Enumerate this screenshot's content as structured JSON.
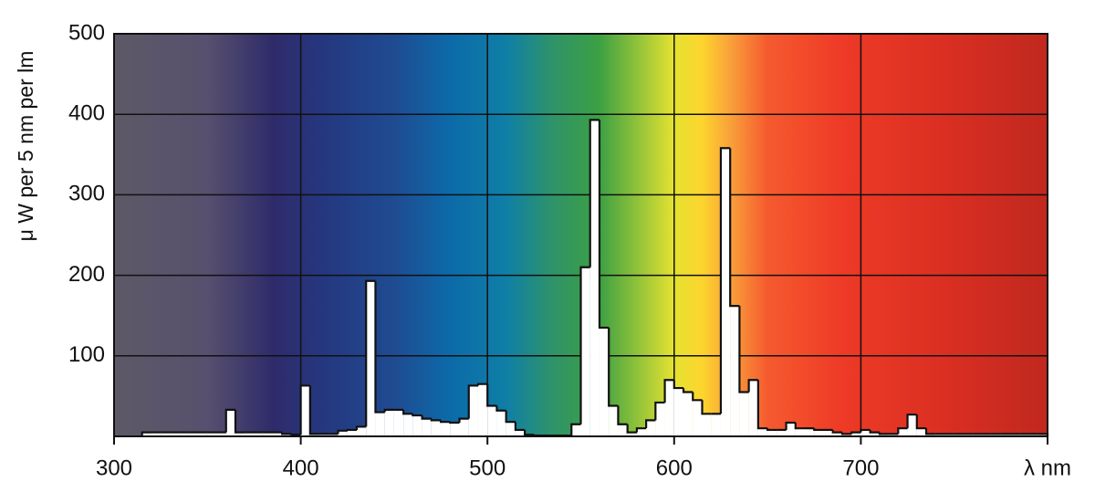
{
  "chart_data": {
    "type": "histogram",
    "y_label": "μ W per 5 nm per lm",
    "xlim": [
      300,
      800
    ],
    "ylim": [
      0,
      500
    ],
    "xticks": [
      300,
      400,
      500,
      600,
      700,
      {
        "value": 800,
        "label": "λ nm"
      }
    ],
    "yticks": [
      100,
      200,
      300,
      400,
      500
    ],
    "grid": true,
    "color": "#ffffff",
    "bins": [
      315,
      320,
      325,
      330,
      335,
      340,
      345,
      350,
      355,
      360,
      365,
      370,
      375,
      380,
      385,
      390,
      395,
      400,
      405,
      410,
      415,
      420,
      425,
      430,
      435,
      440,
      445,
      450,
      455,
      460,
      465,
      470,
      475,
      480,
      485,
      490,
      495,
      500,
      505,
      510,
      515,
      520,
      525,
      530,
      535,
      540,
      545,
      550,
      555,
      560,
      565,
      570,
      575,
      580,
      585,
      590,
      595,
      600,
      605,
      610,
      615,
      620,
      625,
      630,
      635,
      640,
      645,
      650,
      655,
      660,
      665,
      670,
      675,
      680,
      685,
      690,
      695,
      700,
      705,
      710,
      715,
      720,
      725,
      730,
      735,
      740,
      745,
      750,
      755,
      760,
      765,
      770,
      775,
      780,
      785,
      790,
      795,
      800
    ],
    "values": [
      5,
      5,
      5,
      5,
      5,
      5,
      5,
      5,
      5,
      33,
      5,
      5,
      5,
      5,
      5,
      3,
      2,
      63,
      3,
      3,
      3,
      7,
      8,
      12,
      193,
      30,
      33,
      33,
      28,
      26,
      22,
      20,
      18,
      17,
      22,
      63,
      65,
      38,
      32,
      18,
      8,
      2,
      1,
      1,
      1,
      1,
      15,
      210,
      393,
      135,
      38,
      15,
      5,
      10,
      20,
      42,
      70,
      60,
      55,
      45,
      28,
      28,
      358,
      162,
      55,
      70,
      10,
      8,
      8,
      17,
      10,
      10,
      8,
      8,
      5,
      3,
      5,
      8,
      5,
      3,
      3,
      10,
      27,
      10,
      3,
      3,
      3,
      3,
      3,
      3,
      3,
      3,
      3,
      3,
      3,
      3,
      3
    ]
  }
}
